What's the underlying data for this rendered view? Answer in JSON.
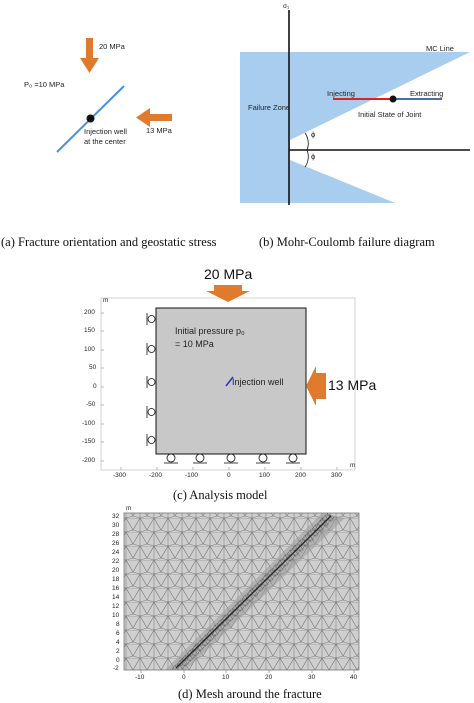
{
  "panel_a": {
    "caption": "(a) Fracture orientation and geostatic stress",
    "stress_vertical": "20 MPa",
    "stress_horizontal": "13 MPa",
    "initial_pressure": "P₀ =10 MPa",
    "well_label_line1": "Injection well",
    "well_label_line2": "at the center",
    "arrow_color": "#e07b2e",
    "fracture_color": "#4a90d9"
  },
  "panel_b": {
    "caption": "(b) Mohr-Coulomb failure diagram",
    "axis_label": "σ₁",
    "mc_line": "MC Line",
    "failure_zone": "Failure Zone",
    "injecting": "Injecting",
    "extracting": "Extracting",
    "initial_state": "Initial State of Joint",
    "phi1": "ϕ",
    "phi2": "ϕ",
    "zone_color": "#a9cdee",
    "injecting_color": "#e02020",
    "extracting_color": "#4a6fa5"
  },
  "panel_c": {
    "caption": "(c) Analysis model",
    "stress_vertical": "20 MPa",
    "stress_horizontal": "13 MPa",
    "initial_pressure_line1": "Initial pressure p₀",
    "initial_pressure_line2": "= 10 MPa",
    "well_label": "Injection well",
    "unit_label": "m",
    "unit_label_x": "m",
    "y_ticks": [
      "200",
      "150",
      "100",
      "50",
      "0",
      "-50",
      "-100",
      "-150",
      "-200"
    ],
    "x_ticks": [
      "-300",
      "-200",
      "-100",
      "0",
      "100",
      "200",
      "300"
    ],
    "domain_color": "#c8c8c8"
  },
  "panel_d": {
    "caption": "(d) Mesh around the fracture",
    "unit_label": "m",
    "y_ticks": [
      "32",
      "30",
      "28",
      "26",
      "24",
      "22",
      "20",
      "18",
      "16",
      "14",
      "12",
      "10",
      "8",
      "6",
      "4",
      "2",
      "0",
      "-2"
    ],
    "x_ticks": [
      "-10",
      "0",
      "10",
      "20",
      "30",
      "40"
    ],
    "mesh_color": "#cfcfcf"
  }
}
